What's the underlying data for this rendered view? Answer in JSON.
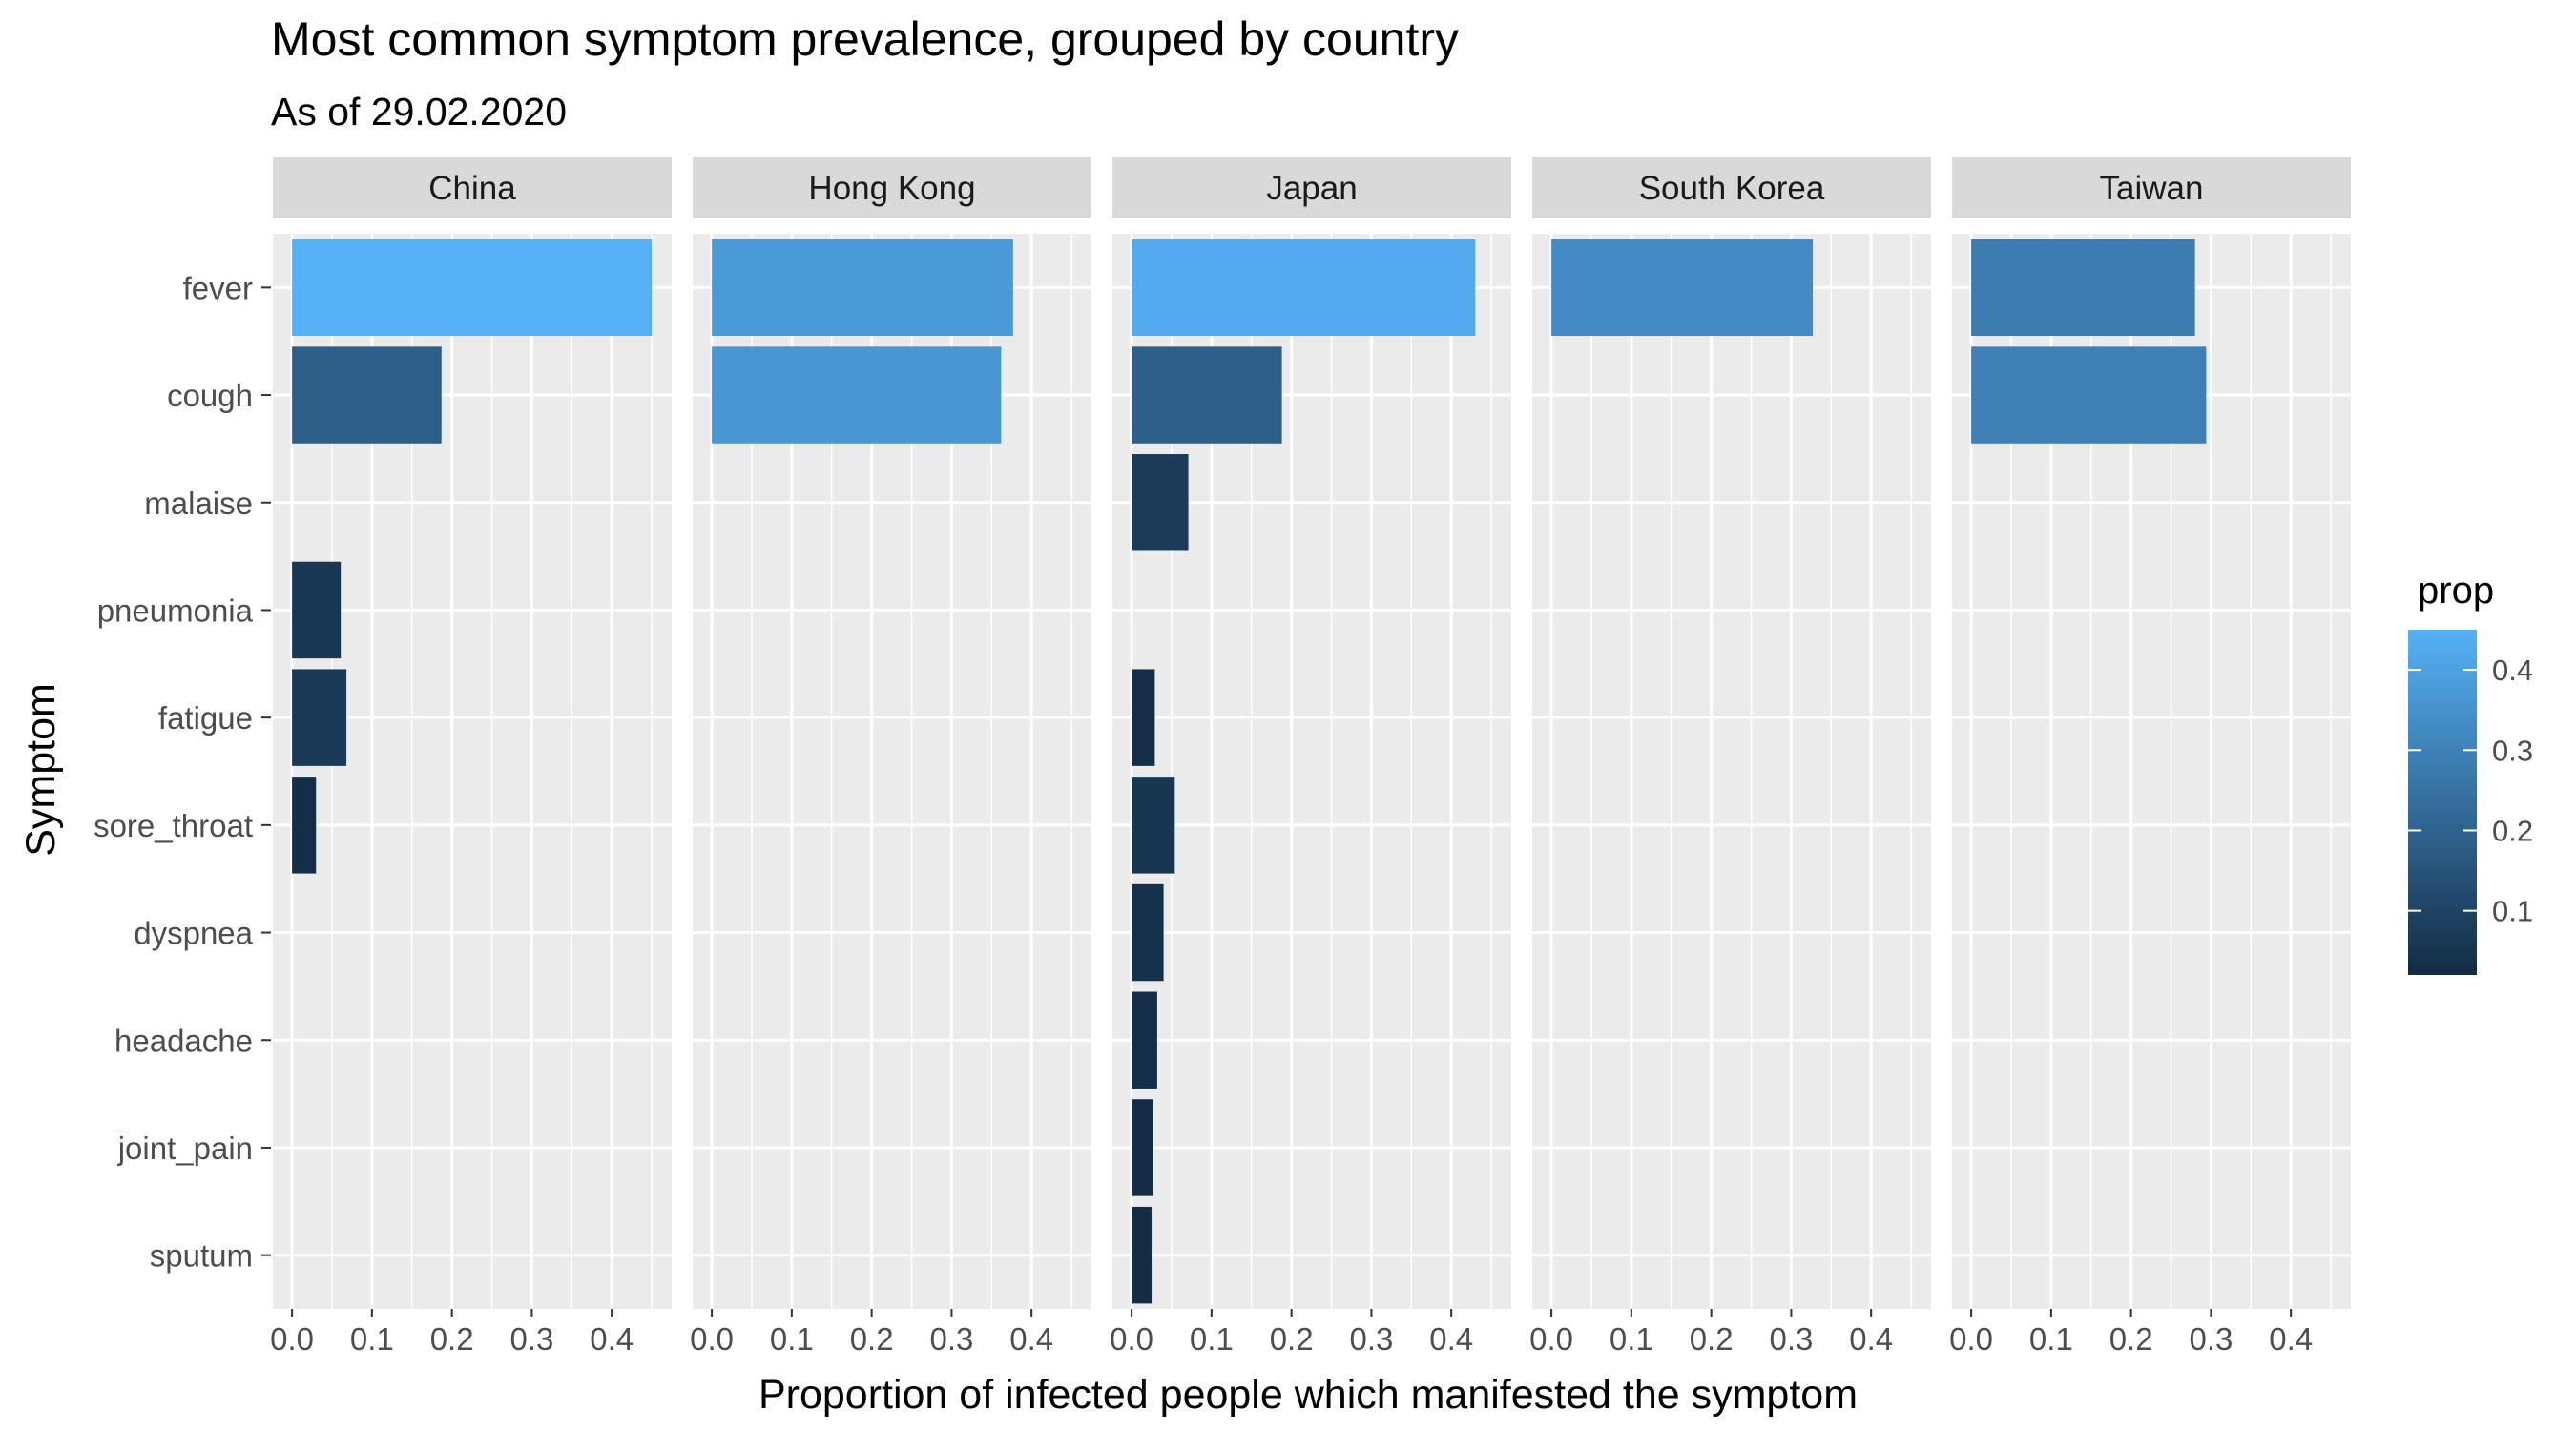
{
  "chart_data": {
    "type": "bar",
    "orientation": "horizontal",
    "title": "Most common symptom prevalence, grouped by country",
    "subtitle": "As of 29.02.2020",
    "xlabel": "Proportion of infected people which manifested the symptom",
    "ylabel": "Symptom",
    "xlim": [
      -0.024,
      0.475
    ],
    "x_ticks": [
      "0.0",
      "0.1",
      "0.2",
      "0.3",
      "0.4"
    ],
    "categories": [
      "fever",
      "cough",
      "malaise",
      "pneumonia",
      "fatigue",
      "sore_throat",
      "dyspnea",
      "headache",
      "joint_pain",
      "sputum"
    ],
    "legend": {
      "title": "prop",
      "placement": "right",
      "range": [
        0.02,
        0.45
      ],
      "ticks": [
        "0.1",
        "0.2",
        "0.3",
        "0.4"
      ],
      "low_color": "#132B43",
      "high_color": "#56B1F7"
    },
    "grid": true,
    "panels": [
      {
        "name": "China",
        "values": [
          0.45,
          0.187,
          null,
          0.061,
          0.068,
          0.03,
          null,
          null,
          null,
          null
        ]
      },
      {
        "name": "Hong Kong",
        "values": [
          0.377,
          0.362,
          null,
          null,
          null,
          null,
          null,
          null,
          null,
          null
        ]
      },
      {
        "name": "Japan",
        "values": [
          0.43,
          0.188,
          0.071,
          null,
          0.029,
          0.054,
          0.04,
          0.032,
          0.027,
          0.025
        ]
      },
      {
        "name": "South Korea",
        "values": [
          0.327,
          null,
          null,
          null,
          null,
          null,
          null,
          null,
          null,
          null
        ]
      },
      {
        "name": "Taiwan",
        "values": [
          0.28,
          0.294,
          null,
          null,
          null,
          null,
          null,
          null,
          null,
          null
        ]
      }
    ]
  }
}
